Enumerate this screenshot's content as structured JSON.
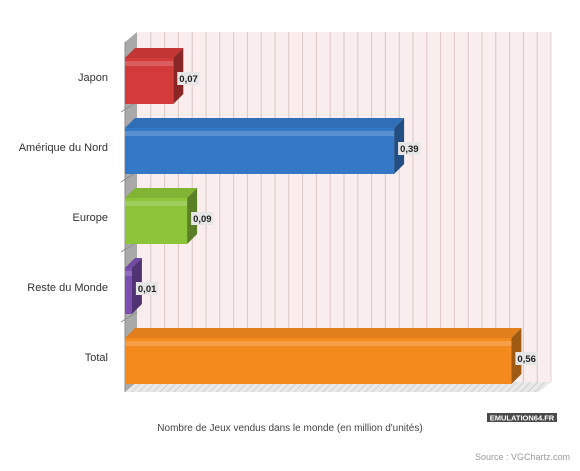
{
  "chart_data": {
    "type": "bar",
    "orientation": "horizontal",
    "style": "3d",
    "categories": [
      "Japon",
      "Amérique du Nord",
      "Europe",
      "Reste du Monde",
      "Total"
    ],
    "values": [
      0.07,
      0.39,
      0.09,
      0.01,
      0.56
    ],
    "value_labels": [
      "0,07",
      "0,39",
      "0,09",
      "0,01",
      "0,56"
    ],
    "colors": [
      "#d33a3a",
      "#3478c8",
      "#8cc43a",
      "#7a4fb0",
      "#f48a1e"
    ],
    "xlabel": "Nombre de Jeux vendus dans le monde (en million d'unités)",
    "xlim": [
      0,
      0.6
    ],
    "grid": true,
    "legend": "none"
  },
  "logo": {
    "text": "EMULATION64.FR"
  },
  "source": "Source : VGChartz.com"
}
